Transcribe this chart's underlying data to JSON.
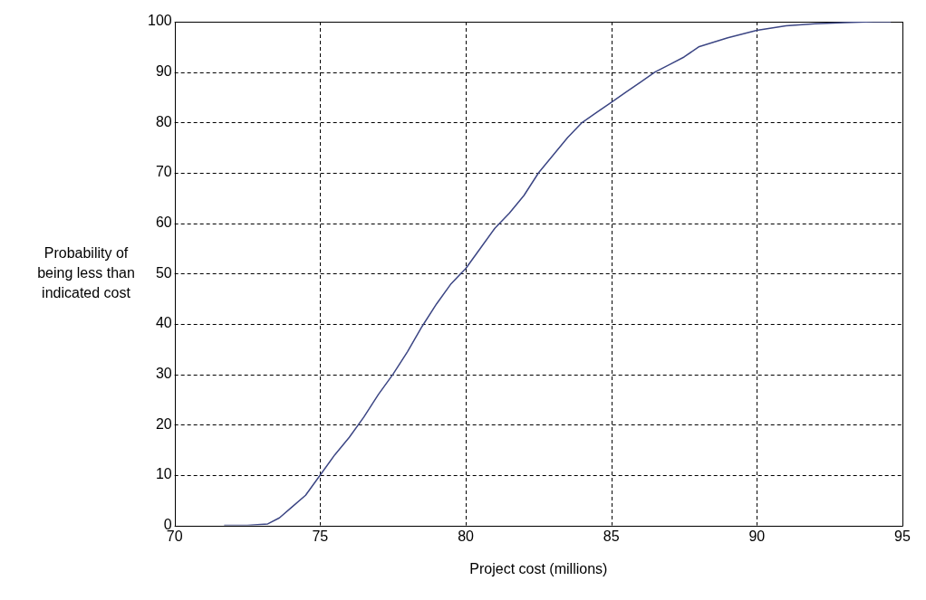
{
  "chart_data": {
    "type": "line",
    "xlabel": "Project cost (millions)",
    "ylabel": "Probability of being less than indicated cost",
    "series": [
      {
        "color": "#3c4684",
        "x": [
          71.7,
          72.5,
          73.2,
          73.6,
          74.0,
          74.5,
          75.0,
          75.5,
          76.0,
          76.5,
          77.0,
          77.5,
          78.0,
          78.5,
          79.0,
          79.5,
          80.0,
          80.5,
          81.0,
          81.5,
          82.0,
          82.5,
          83.0,
          83.5,
          84.0,
          84.5,
          85.0,
          85.5,
          86.0,
          86.5,
          87.0,
          87.5,
          88.0,
          89.0,
          90.0,
          91.0,
          92.0,
          93.0,
          94.0,
          94.6
        ],
        "values": [
          0,
          0,
          0.3,
          1.5,
          3.5,
          6,
          10,
          14,
          17.5,
          21.5,
          26,
          30,
          34.5,
          39.5,
          44,
          48,
          51,
          55,
          59,
          62,
          65.5,
          70,
          73.5,
          77,
          80,
          82,
          84,
          86,
          88,
          90,
          91.5,
          93,
          95,
          96.8,
          98.3,
          99.2,
          99.6,
          99.8,
          100,
          100
        ]
      }
    ],
    "xlim": [
      70,
      95
    ],
    "xticks": [
      70,
      75,
      80,
      85,
      90,
      95
    ],
    "ylim": [
      0,
      100
    ],
    "yticks": [
      0,
      10,
      20,
      30,
      40,
      50,
      60,
      70,
      80,
      90,
      100
    ],
    "grid": true,
    "legend": false,
    "marker": "none",
    "line_style": "solid"
  }
}
